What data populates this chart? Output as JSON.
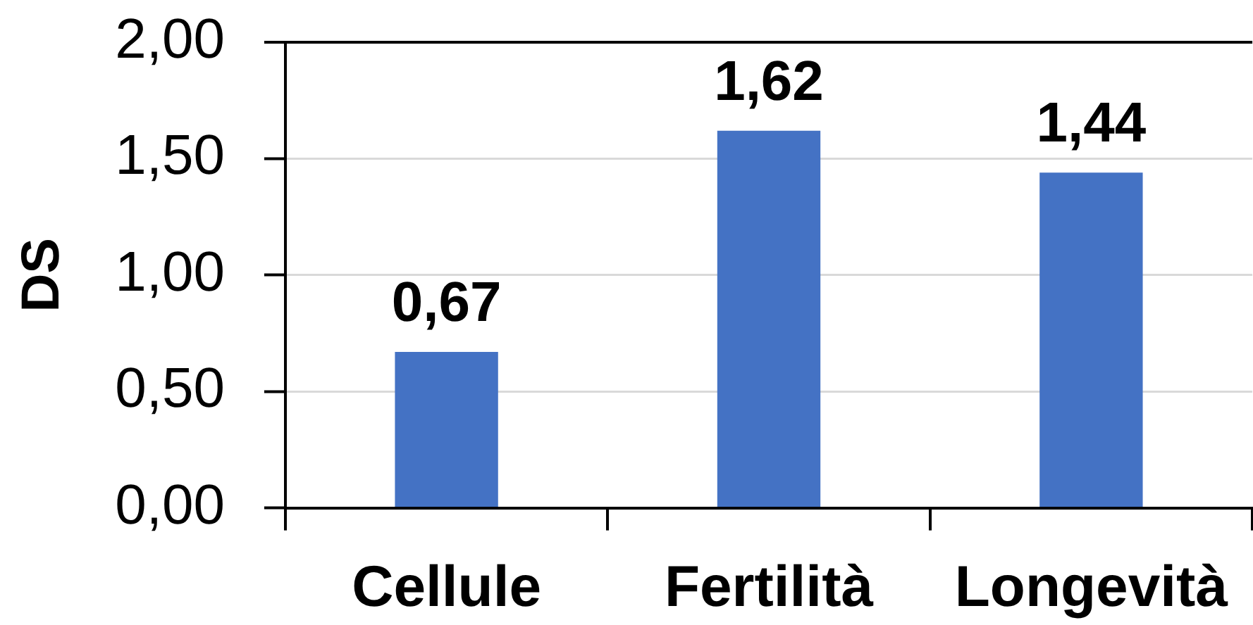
{
  "chart_data": {
    "type": "bar",
    "categories": [
      "Cellule",
      "Fertilità",
      "Longevità"
    ],
    "values": [
      0.67,
      1.62,
      1.44
    ],
    "color": "#4472c4",
    "value_labels": [
      "0,67",
      "1,62",
      "1,44"
    ],
    "ylabel": "DS",
    "ylim": [
      0,
      2
    ],
    "yticks": [
      {
        "value": 0,
        "label": "0,00"
      },
      {
        "value": 0.5,
        "label": "0,50"
      },
      {
        "value": 1,
        "label": "1,00"
      },
      {
        "value": 1.5,
        "label": "1,50"
      },
      {
        "value": 2,
        "label": "2,00"
      }
    ],
    "grid": "y"
  }
}
